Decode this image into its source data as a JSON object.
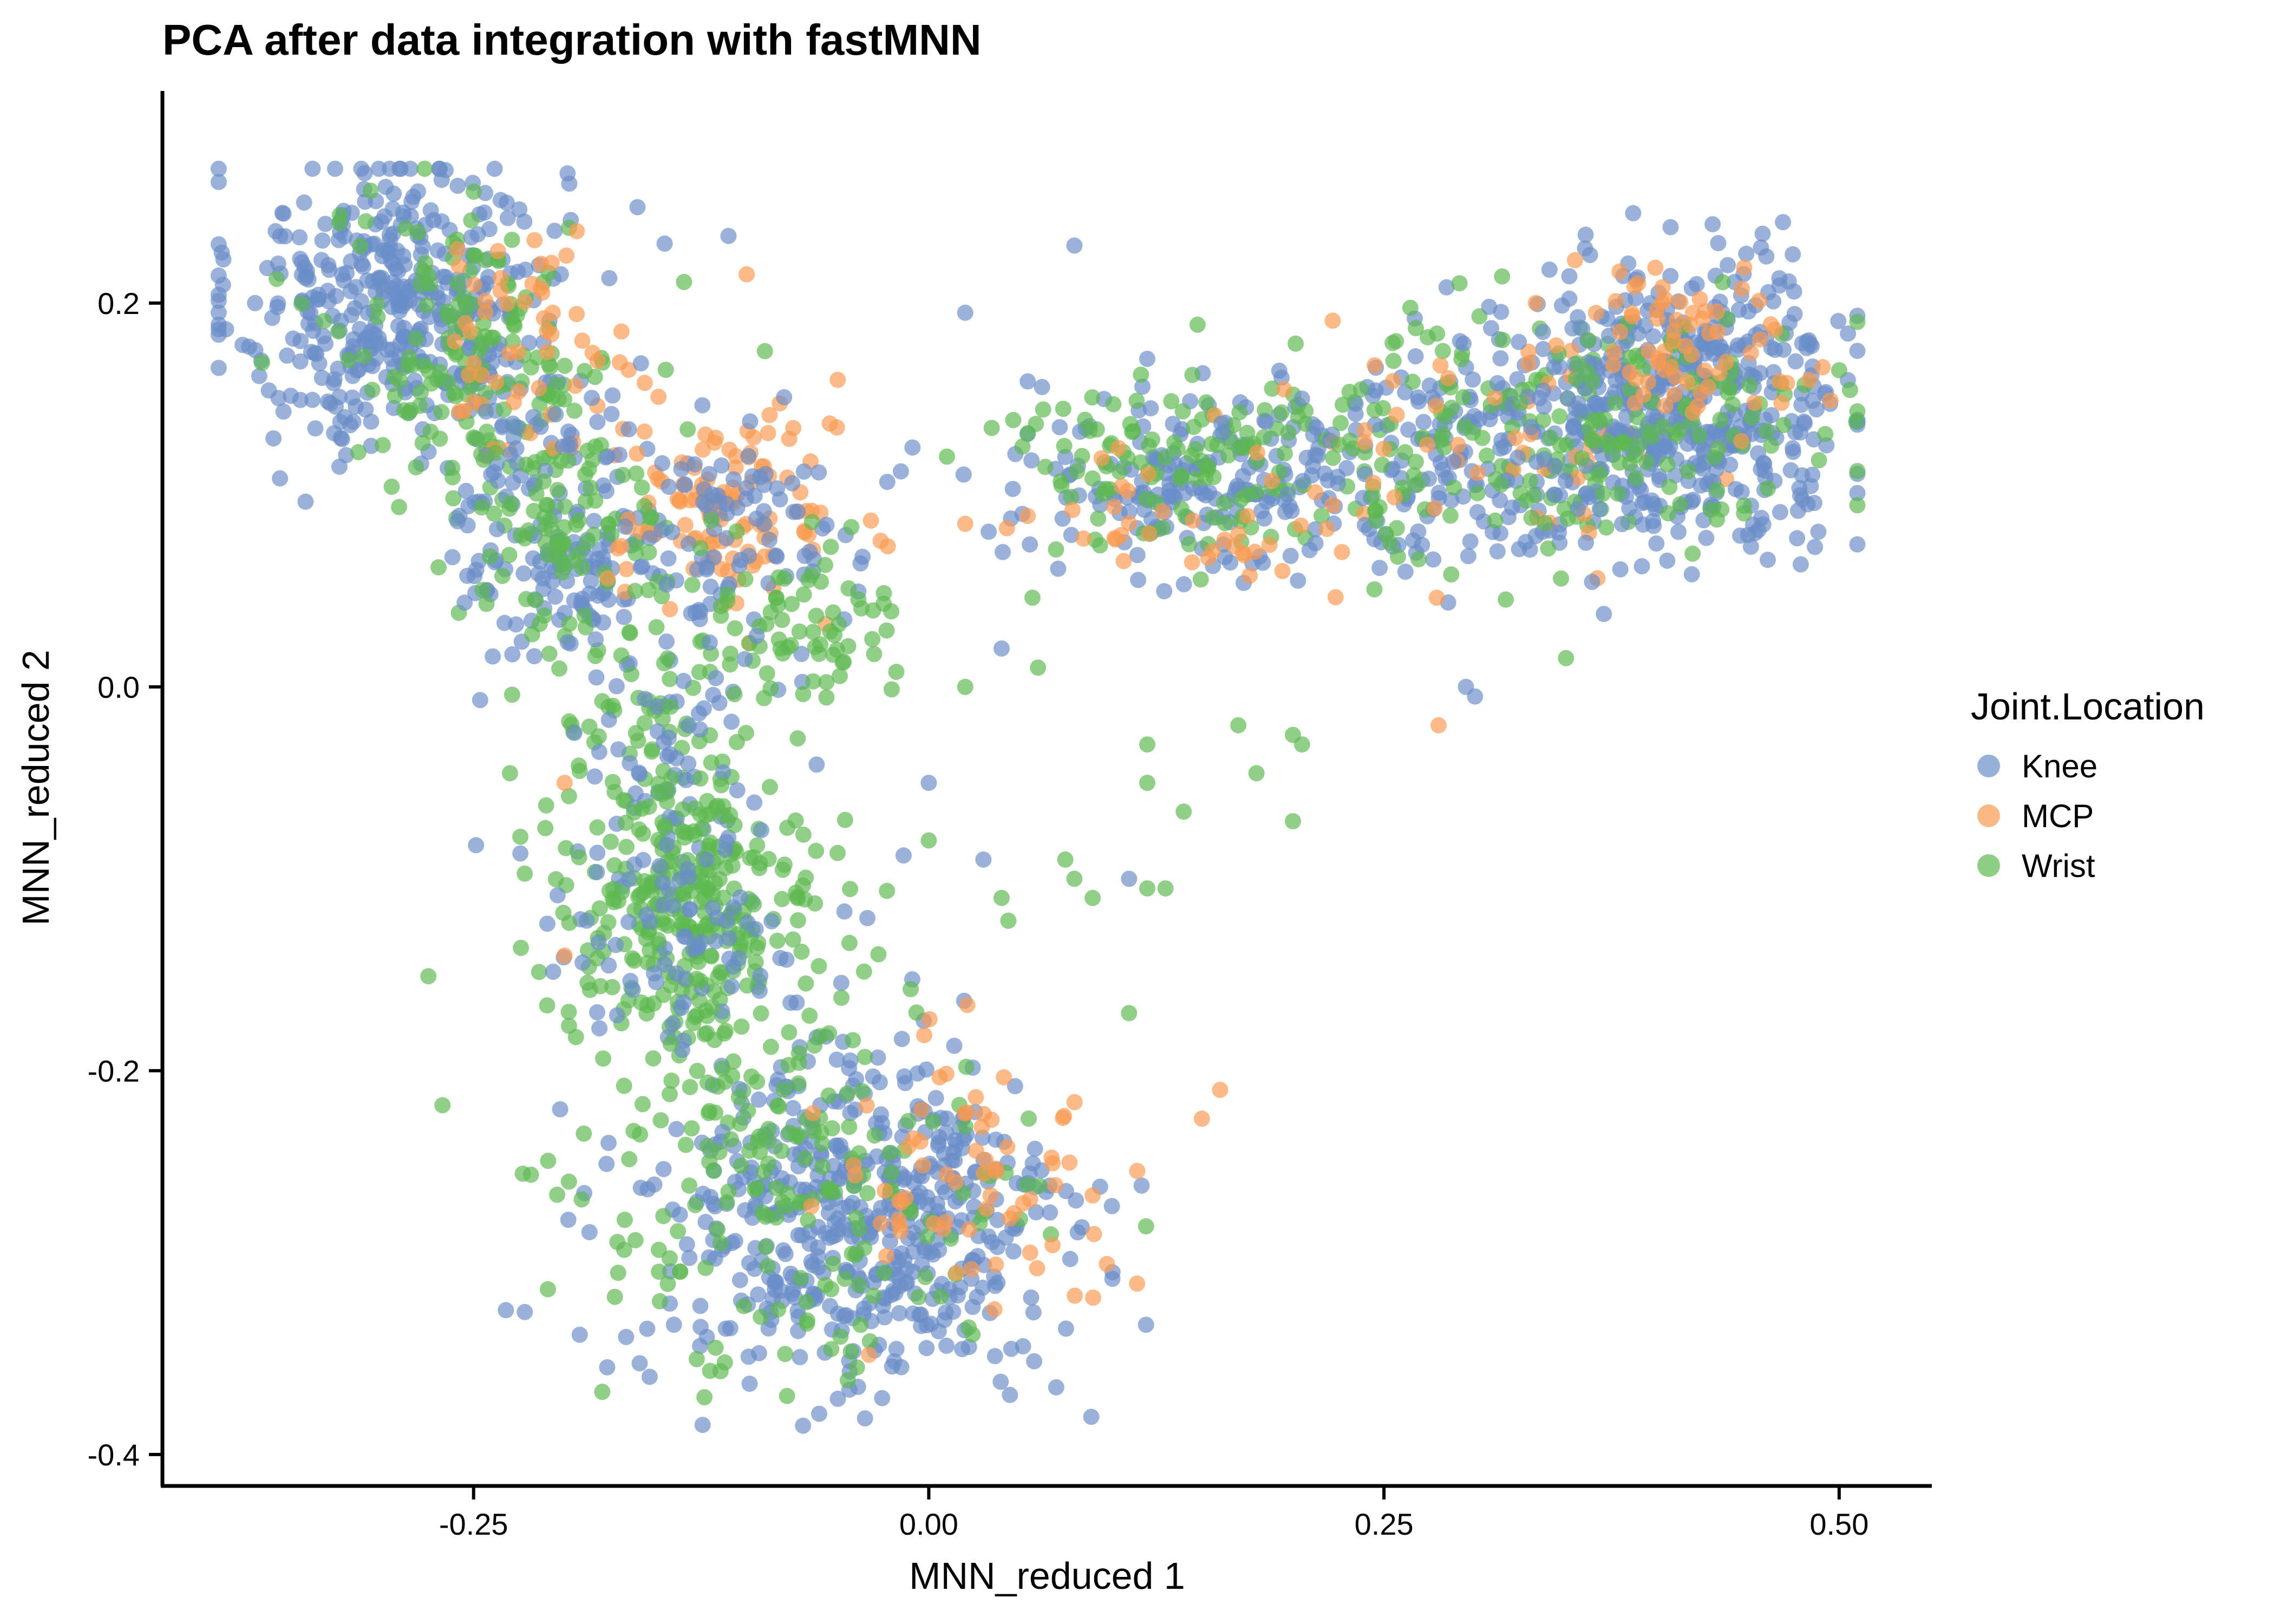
{
  "chart_data": {
    "type": "scatter",
    "title": "PCA after data integration with fastMNN",
    "xlabel": "MNN_reduced 1",
    "ylabel": "MNN_reduced 2",
    "xlim": [
      -0.42,
      0.55
    ],
    "ylim": [
      -0.415,
      0.31
    ],
    "x_ticks": [
      -0.25,
      0.0,
      0.25,
      0.5
    ],
    "x_tick_labels": [
      "-0.25",
      "0.00",
      "0.25",
      "0.50"
    ],
    "y_ticks": [
      -0.4,
      -0.2,
      0.0,
      0.2
    ],
    "y_tick_labels": [
      "-0.4",
      "-0.2",
      "0.0",
      "0.2"
    ],
    "grid": false,
    "legend": {
      "title": "Joint.Location",
      "placement": "right"
    },
    "series": [
      {
        "name": "Knee",
        "color": "#6A8EC8"
      },
      {
        "name": "MCP",
        "color": "#F99A50"
      },
      {
        "name": "Wrist",
        "color": "#5DB850"
      }
    ],
    "clusters": [
      {
        "series": "Knee",
        "center": [
          -0.29,
          0.2
        ],
        "spread": [
          0.045,
          0.04
        ],
        "approx_points": 420
      },
      {
        "series": "Wrist",
        "center": [
          -0.25,
          0.17
        ],
        "spread": [
          0.04,
          0.04
        ],
        "approx_points": 160
      },
      {
        "series": "MCP",
        "center": [
          -0.22,
          0.18
        ],
        "spread": [
          0.03,
          0.03
        ],
        "approx_points": 60
      },
      {
        "series": "Knee",
        "center": [
          -0.2,
          0.08
        ],
        "spread": [
          0.03,
          0.035
        ],
        "approx_points": 160
      },
      {
        "series": "Wrist",
        "center": [
          -0.2,
          0.08
        ],
        "spread": [
          0.03,
          0.03
        ],
        "approx_points": 90
      },
      {
        "series": "MCP",
        "center": [
          -0.11,
          0.09
        ],
        "spread": [
          0.03,
          0.025
        ],
        "approx_points": 110
      },
      {
        "series": "Knee",
        "center": [
          -0.1,
          0.08
        ],
        "spread": [
          0.03,
          0.03
        ],
        "approx_points": 90
      },
      {
        "series": "Wrist",
        "center": [
          -0.07,
          0.03
        ],
        "spread": [
          0.025,
          0.025
        ],
        "approx_points": 70
      },
      {
        "series": "Wrist",
        "center": [
          -0.15,
          -0.01
        ],
        "spread": [
          0.03,
          0.04
        ],
        "approx_points": 80
      },
      {
        "series": "Knee",
        "center": [
          -0.14,
          -0.04
        ],
        "spread": [
          0.03,
          0.04
        ],
        "approx_points": 70
      },
      {
        "series": "Wrist",
        "center": [
          -0.13,
          -0.12
        ],
        "spread": [
          0.035,
          0.035
        ],
        "approx_points": 300
      },
      {
        "series": "Knee",
        "center": [
          -0.14,
          -0.13
        ],
        "spread": [
          0.04,
          0.03
        ],
        "approx_points": 80
      },
      {
        "series": "Knee",
        "center": [
          -0.04,
          -0.28
        ],
        "spread": [
          0.06,
          0.045
        ],
        "approx_points": 520
      },
      {
        "series": "Wrist",
        "center": [
          -0.07,
          -0.26
        ],
        "spread": [
          0.06,
          0.05
        ],
        "approx_points": 200
      },
      {
        "series": "MCP",
        "center": [
          0.02,
          -0.25
        ],
        "spread": [
          0.04,
          0.04
        ],
        "approx_points": 70
      },
      {
        "series": "Knee",
        "center": [
          0.15,
          0.11
        ],
        "spread": [
          0.05,
          0.025
        ],
        "approx_points": 200
      },
      {
        "series": "Wrist",
        "center": [
          0.14,
          0.12
        ],
        "spread": [
          0.05,
          0.025
        ],
        "approx_points": 130
      },
      {
        "series": "MCP",
        "center": [
          0.16,
          0.09
        ],
        "spread": [
          0.05,
          0.02
        ],
        "approx_points": 40
      },
      {
        "series": "Knee",
        "center": [
          0.3,
          0.12
        ],
        "spread": [
          0.05,
          0.035
        ],
        "approx_points": 200
      },
      {
        "series": "Wrist",
        "center": [
          0.3,
          0.13
        ],
        "spread": [
          0.05,
          0.035
        ],
        "approx_points": 120
      },
      {
        "series": "MCP",
        "center": [
          0.32,
          0.13
        ],
        "spread": [
          0.05,
          0.03
        ],
        "approx_points": 50
      },
      {
        "series": "Knee",
        "center": [
          0.42,
          0.15
        ],
        "spread": [
          0.045,
          0.035
        ],
        "approx_points": 460
      },
      {
        "series": "Wrist",
        "center": [
          0.41,
          0.14
        ],
        "spread": [
          0.045,
          0.03
        ],
        "approx_points": 110
      },
      {
        "series": "MCP",
        "center": [
          0.42,
          0.18
        ],
        "spread": [
          0.04,
          0.02
        ],
        "approx_points": 70
      }
    ],
    "scattered_points": [
      {
        "series": "Knee",
        "x": 0.08,
        "y": 0.23
      },
      {
        "series": "Knee",
        "x": -0.16,
        "y": 0.25
      },
      {
        "series": "Knee",
        "x": -0.11,
        "y": 0.235
      },
      {
        "series": "Knee",
        "x": 0.02,
        "y": 0.195
      },
      {
        "series": "MCP",
        "x": -0.1,
        "y": 0.215
      },
      {
        "series": "Wrist",
        "x": -0.09,
        "y": 0.175
      },
      {
        "series": "MCP",
        "x": -0.05,
        "y": 0.16
      },
      {
        "series": "Wrist",
        "x": 0.01,
        "y": 0.12
      },
      {
        "series": "MCP",
        "x": 0.02,
        "y": 0.085
      },
      {
        "series": "Knee",
        "x": 0.04,
        "y": 0.02
      },
      {
        "series": "Wrist",
        "x": 0.02,
        "y": 0.0
      },
      {
        "series": "Wrist",
        "x": 0.06,
        "y": 0.01
      },
      {
        "series": "Knee",
        "x": 0.0,
        "y": -0.05
      },
      {
        "series": "Wrist",
        "x": 0.0,
        "y": -0.08
      },
      {
        "series": "Knee",
        "x": 0.03,
        "y": -0.09
      },
      {
        "series": "Wrist",
        "x": 0.04,
        "y": -0.11
      },
      {
        "series": "MCP",
        "x": 0.16,
        "y": -0.21
      },
      {
        "series": "MCP",
        "x": 0.15,
        "y": -0.225
      },
      {
        "series": "MCP",
        "x": 0.09,
        "y": -0.265
      },
      {
        "series": "Knee",
        "x": 0.07,
        "y": -0.365
      },
      {
        "series": "Wrist",
        "x": 0.12,
        "y": -0.03
      },
      {
        "series": "Wrist",
        "x": 0.12,
        "y": -0.05
      },
      {
        "series": "Wrist",
        "x": 0.14,
        "y": -0.065
      },
      {
        "series": "Knee",
        "x": 0.11,
        "y": -0.1
      },
      {
        "series": "Wrist",
        "x": 0.12,
        "y": -0.105
      },
      {
        "series": "Wrist",
        "x": 0.13,
        "y": -0.105
      },
      {
        "series": "Wrist",
        "x": 0.11,
        "y": -0.17
      },
      {
        "series": "Wrist",
        "x": 0.075,
        "y": -0.09
      },
      {
        "series": "Wrist",
        "x": 0.08,
        "y": -0.1
      },
      {
        "series": "Wrist",
        "x": 0.09,
        "y": -0.11
      },
      {
        "series": "Wrist",
        "x": 0.17,
        "y": -0.02
      },
      {
        "series": "Wrist",
        "x": 0.18,
        "y": -0.045
      },
      {
        "series": "Wrist",
        "x": 0.2,
        "y": -0.025
      },
      {
        "series": "Wrist",
        "x": 0.205,
        "y": -0.03
      },
      {
        "series": "Wrist",
        "x": 0.2,
        "y": -0.07
      },
      {
        "series": "Knee",
        "x": 0.295,
        "y": 0.0
      },
      {
        "series": "Knee",
        "x": 0.3,
        "y": -0.005
      },
      {
        "series": "MCP",
        "x": 0.28,
        "y": -0.02
      },
      {
        "series": "Wrist",
        "x": 0.35,
        "y": 0.015
      },
      {
        "series": "Wrist",
        "x": 0.5,
        "y": 0.165
      },
      {
        "series": "Wrist",
        "x": -0.25,
        "y": 0.13
      },
      {
        "series": "Knee",
        "x": -0.37,
        "y": 0.2
      },
      {
        "series": "Wrist",
        "x": -0.23,
        "y": -0.045
      },
      {
        "series": "MCP",
        "x": -0.2,
        "y": -0.05
      },
      {
        "series": "MCP",
        "x": -0.2,
        "y": -0.14
      }
    ]
  }
}
